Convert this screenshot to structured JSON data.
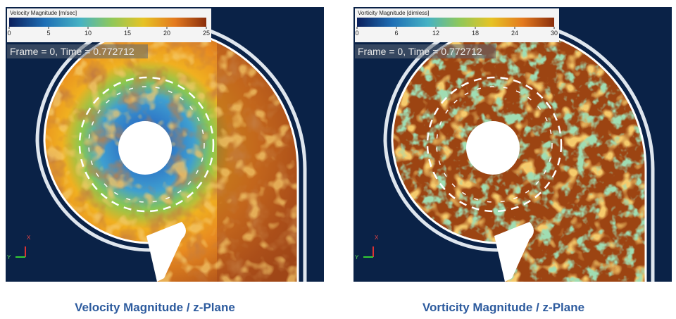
{
  "panels": [
    {
      "colorbar": {
        "title": "Velocity Magnitude [m/sec]",
        "range": [
          0,
          25
        ],
        "ticks": [
          0,
          5,
          10,
          15,
          20,
          25
        ]
      },
      "frame_label": "Frame = 0, Time = 0.772712",
      "axis_labels": [
        "X",
        "Y"
      ],
      "caption": "Velocity Magnitude / z-Plane"
    },
    {
      "colorbar": {
        "title": "Vorticity Magnitude [dimless]",
        "range": [
          0,
          30
        ],
        "ticks": [
          0,
          6,
          12,
          18,
          24,
          30
        ]
      },
      "frame_label": "Frame = 0, Time = 0.772712",
      "axis_labels": [
        "X",
        "Y"
      ],
      "caption": "Vorticity Magnitude / z-Plane"
    }
  ]
}
